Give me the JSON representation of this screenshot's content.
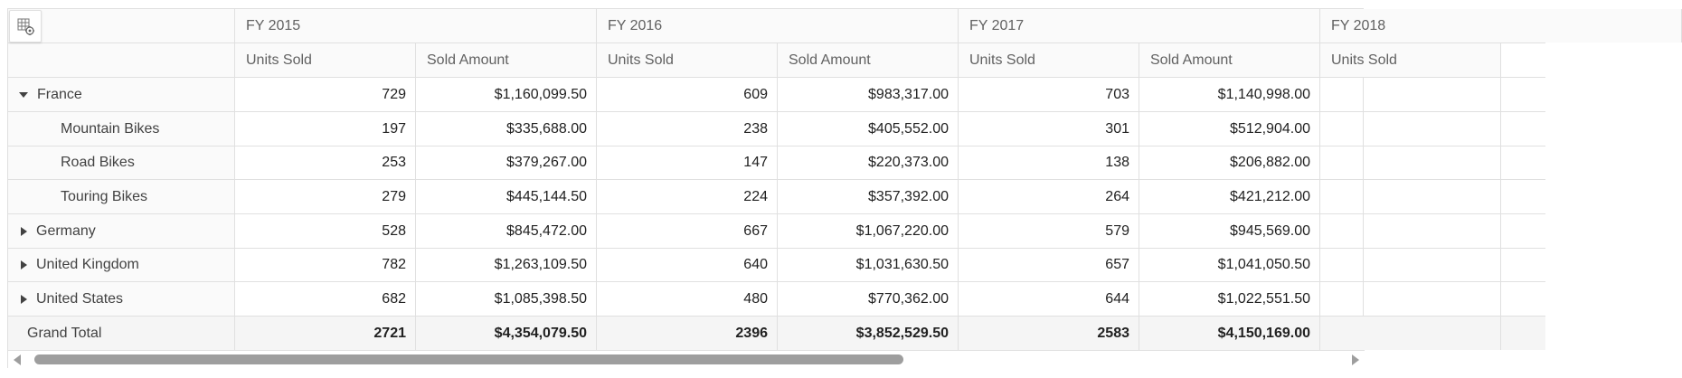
{
  "headers": {
    "years": [
      "FY 2015",
      "FY 2016",
      "FY 2017",
      "FY 2018"
    ],
    "measures": [
      "Units Sold",
      "Sold Amount"
    ]
  },
  "rows": [
    {
      "label": "France",
      "expanded": true,
      "level": 0,
      "cells": [
        "729",
        "$1,160,099.50",
        "609",
        "$983,317.00",
        "703",
        "$1,140,998.00"
      ]
    },
    {
      "label": "Mountain Bikes",
      "level": 1,
      "cells": [
        "197",
        "$335,688.00",
        "238",
        "$405,552.00",
        "301",
        "$512,904.00"
      ]
    },
    {
      "label": "Road Bikes",
      "level": 1,
      "cells": [
        "253",
        "$379,267.00",
        "147",
        "$220,373.00",
        "138",
        "$206,882.00"
      ]
    },
    {
      "label": "Touring Bikes",
      "level": 1,
      "cells": [
        "279",
        "$445,144.50",
        "224",
        "$357,392.00",
        "264",
        "$421,212.00"
      ]
    },
    {
      "label": "Germany",
      "expanded": false,
      "level": 0,
      "cells": [
        "528",
        "$845,472.00",
        "667",
        "$1,067,220.00",
        "579",
        "$945,569.00"
      ]
    },
    {
      "label": "United Kingdom",
      "expanded": false,
      "level": 0,
      "cells": [
        "782",
        "$1,263,109.50",
        "640",
        "$1,031,630.50",
        "657",
        "$1,041,050.50"
      ]
    },
    {
      "label": "United States",
      "expanded": false,
      "level": 0,
      "cells": [
        "682",
        "$1,085,398.50",
        "480",
        "$770,362.00",
        "644",
        "$1,022,551.50"
      ]
    }
  ],
  "grand_total": {
    "label": "Grand Total",
    "cells": [
      "2721",
      "$4,354,079.50",
      "2396",
      "$3,852,529.50",
      "2583",
      "$4,150,169.00"
    ]
  },
  "icons": {
    "field_list": "grid-settings-icon",
    "expand": "caret-right-icon",
    "collapse": "caret-down-icon",
    "scroll_left": "scroll-left-arrow-icon",
    "scroll_right": "scroll-right-arrow-icon"
  },
  "colors": {
    "border": "#e0e0e0",
    "header_bg": "#fafafa",
    "total_bg": "#f5f5f5",
    "scroll_thumb": "#9e9e9e"
  }
}
